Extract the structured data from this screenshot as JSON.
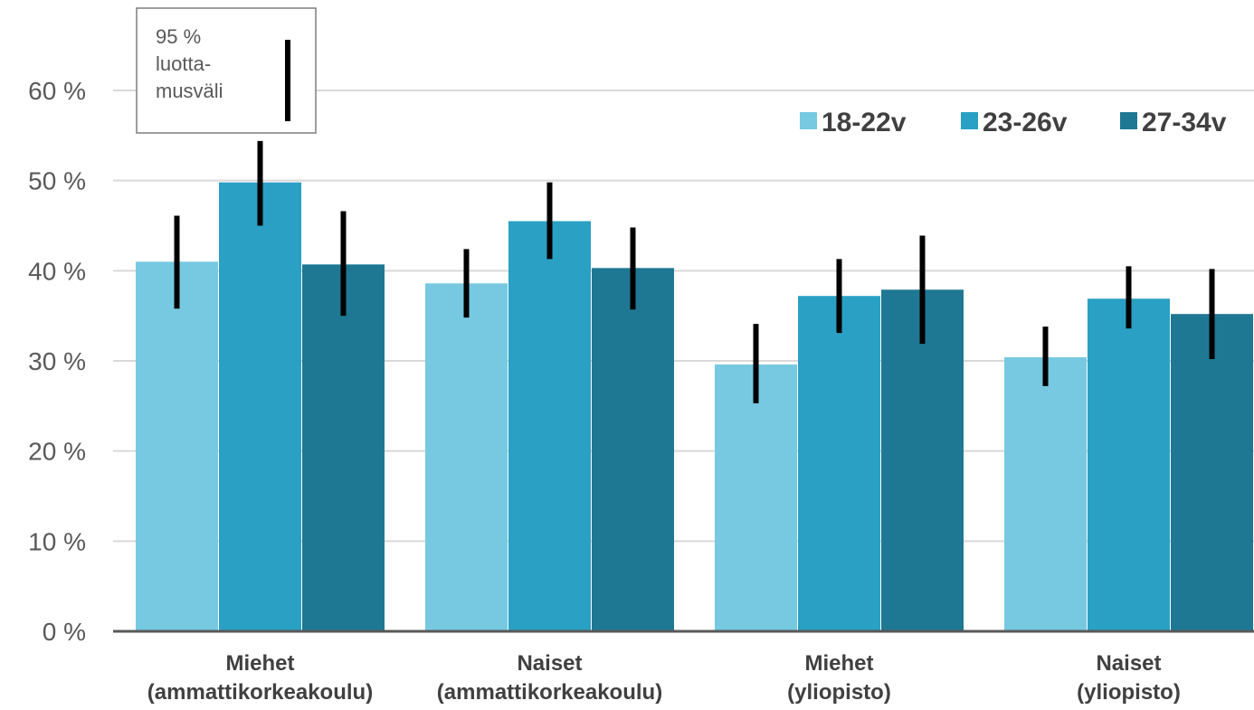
{
  "chart_data": {
    "type": "bar",
    "categories": [
      [
        "Miehet",
        "(ammattikorkeakoulu)"
      ],
      [
        "Naiset",
        "(ammattikorkeakoulu)"
      ],
      [
        "Miehet",
        "(yliopisto)"
      ],
      [
        "Naiset",
        "(yliopisto)"
      ]
    ],
    "series": [
      {
        "name": "18-22v",
        "color": "#76C9E1",
        "values": [
          41.0,
          38.6,
          29.6,
          30.4
        ],
        "ci": [
          [
            35.8,
            46.1
          ],
          [
            34.8,
            42.4
          ],
          [
            25.3,
            34.1
          ],
          [
            27.2,
            33.8
          ]
        ]
      },
      {
        "name": "23-26v",
        "color": "#2AA0C4",
        "values": [
          49.8,
          45.5,
          37.2,
          36.9
        ],
        "ci": [
          [
            45.0,
            54.4
          ],
          [
            41.3,
            49.8
          ],
          [
            33.1,
            41.3
          ],
          [
            33.6,
            40.5
          ]
        ]
      },
      {
        "name": "27-34v",
        "color": "#1F7893",
        "values": [
          40.7,
          40.3,
          37.9,
          35.2
        ],
        "ci": [
          [
            35.0,
            46.6
          ],
          [
            35.7,
            44.8
          ],
          [
            31.9,
            43.9
          ],
          [
            30.2,
            40.2
          ]
        ]
      }
    ],
    "ylim": [
      0,
      60
    ],
    "yticks": [
      "0 %",
      "10 %",
      "20 %",
      "30 %",
      "40 %",
      "50 %",
      "60 %"
    ],
    "grid": true,
    "legend_position": "top-right",
    "annotation": {
      "lines": [
        "95 %",
        "luotta-",
        "musväli"
      ]
    },
    "error_bar_color": "#000000",
    "grid_color": "#D9D9D9",
    "axis_color": "#595959"
  }
}
